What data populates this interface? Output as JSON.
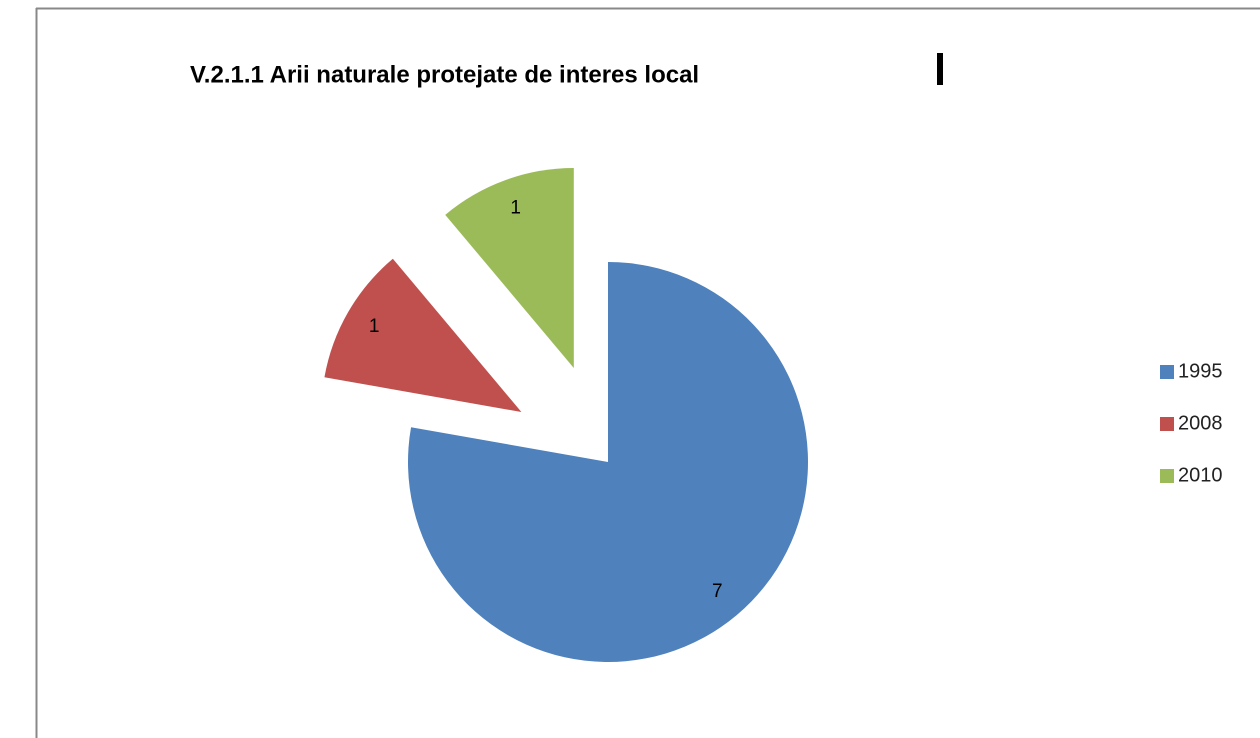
{
  "chart_data": {
    "type": "pie",
    "title": "V.2.1.1 Arii naturale protejate de interes local",
    "categories": [
      "1995",
      "2008",
      "2010"
    ],
    "values": [
      7,
      1,
      1
    ],
    "colors": [
      "#4f81bd",
      "#c0504d",
      "#9bbb59"
    ],
    "legend": "right"
  }
}
